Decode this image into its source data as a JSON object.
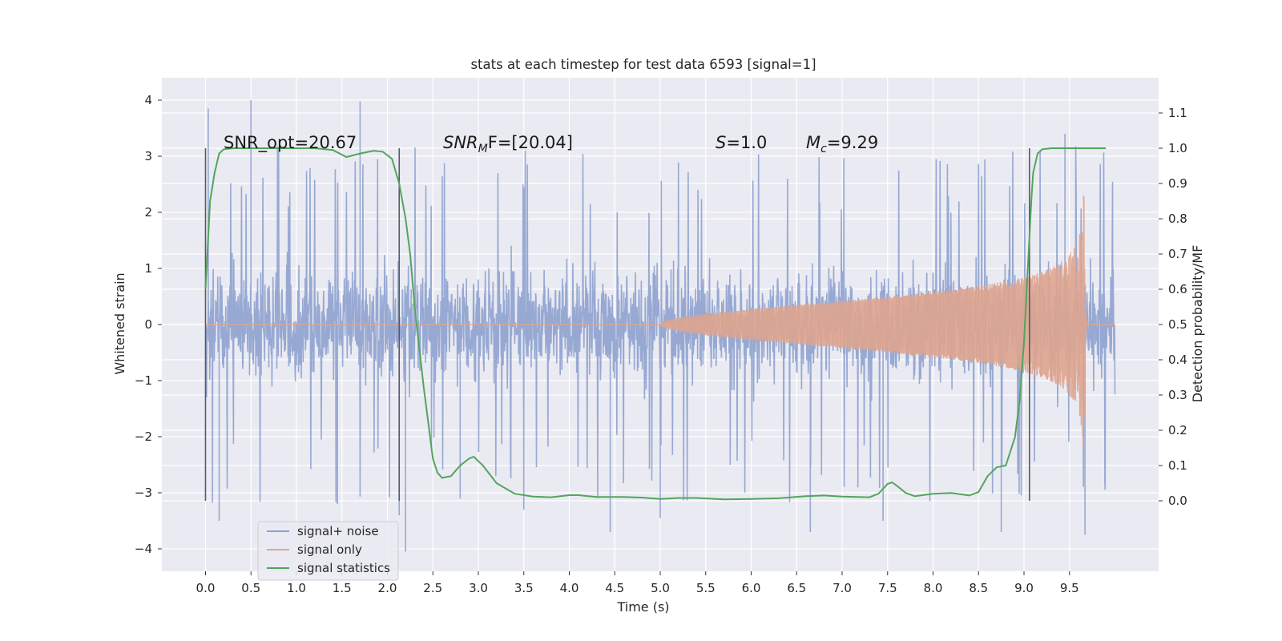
{
  "chart_data": {
    "type": "line",
    "title": "stats at each timestep for test data 6593 [signal=1]",
    "xlabel": "Time (s)",
    "ylabel": "Whitened strain",
    "ylabel_right": "Detection probability/MF",
    "xlim": [
      -0.48,
      10.48
    ],
    "ylim": [
      -4.4,
      4.4
    ],
    "ylim_right": [
      -0.2,
      1.2
    ],
    "xticks": [
      "0.0",
      "0.5",
      "1.0",
      "1.5",
      "2.0",
      "2.5",
      "3.0",
      "3.5",
      "4.0",
      "4.5",
      "5.0",
      "5.5",
      "6.0",
      "6.5",
      "7.0",
      "7.5",
      "8.0",
      "8.5",
      "9.0",
      "9.5"
    ],
    "yticks": [
      "4",
      "3",
      "2",
      "1",
      "0",
      "−1",
      "−2",
      "−3",
      "−4"
    ],
    "yticks_right": [
      "1.1",
      "1.0",
      "0.9",
      "0.8",
      "0.7",
      "0.6",
      "0.5",
      "0.4",
      "0.3",
      "0.2",
      "0.1",
      "0.0"
    ],
    "grid": true,
    "annotations": {
      "snr_opt": "SNR_opt=20.67",
      "snr_mf_main": "SNR",
      "snr_mf_sub": "M",
      "snr_mf_tail": "F=[20.04]",
      "s_main": "S",
      "s_tail": "=1.0",
      "mc_main": "M",
      "mc_sub": "c",
      "mc_tail": "=9.29"
    },
    "vlines_x": [
      0.0,
      2.13,
      9.06
    ],
    "legend": {
      "position": "lower-left",
      "entries": [
        "signal+ noise",
        "signal only",
        "signal statistics"
      ]
    },
    "series": [
      {
        "name": "signal+ noise",
        "color": "#8ea2cf",
        "x_range": [
          0.0,
          10.0
        ],
        "envelope": {
          "typical": 1.2,
          "frequent": 1.95,
          "peak": 4.0
        },
        "spikes": [
          [
            0.03,
            3.85
          ],
          [
            0.5,
            4.0
          ],
          [
            1.7,
            3.98
          ],
          [
            0.15,
            -3.5
          ],
          [
            2.2,
            -4.05
          ],
          [
            2.13,
            -3.4
          ],
          [
            3.5,
            -3.3
          ],
          [
            4.45,
            -3.7
          ],
          [
            5.0,
            -3.45
          ],
          [
            6.65,
            -3.7
          ],
          [
            7.45,
            -3.5
          ],
          [
            8.75,
            -3.7
          ],
          [
            9.67,
            -3.75
          ],
          [
            9.45,
            3.4
          ],
          [
            1.45,
            -3.2
          ],
          [
            2.8,
            -3.1
          ]
        ]
      },
      {
        "name": "signal only",
        "color": "#dea48e",
        "x_range": [
          0.0,
          10.0
        ],
        "chirp_start": 5.0,
        "merger_time": 9.66,
        "peak_amplitude": 2.5
      },
      {
        "name": "signal statistics",
        "color": "#52a55d",
        "axis": "right",
        "x": [
          0.0,
          0.05,
          0.1,
          0.15,
          0.2,
          0.3,
          0.5,
          0.8,
          1.0,
          1.2,
          1.4,
          1.55,
          1.7,
          1.85,
          1.95,
          2.05,
          2.13,
          2.2,
          2.25,
          2.3,
          2.4,
          2.45,
          2.5,
          2.55,
          2.6,
          2.7,
          2.8,
          2.9,
          2.95,
          3.05,
          3.2,
          3.4,
          3.6,
          3.8,
          4.0,
          4.1,
          4.3,
          4.6,
          4.8,
          5.0,
          5.2,
          5.4,
          5.7,
          6.0,
          6.3,
          6.6,
          6.8,
          7.0,
          7.3,
          7.4,
          7.5,
          7.55,
          7.6,
          7.7,
          7.8,
          8.0,
          8.2,
          8.4,
          8.5,
          8.6,
          8.7,
          8.8,
          8.9,
          8.95,
          9.0,
          9.05,
          9.08,
          9.1,
          9.15,
          9.2,
          9.3,
          9.5,
          9.7,
          9.9
        ],
        "y": [
          0.6,
          0.85,
          0.93,
          0.985,
          0.997,
          1.0,
          1.0,
          1.0,
          1.0,
          1.0,
          0.995,
          0.975,
          0.985,
          0.993,
          0.99,
          0.97,
          0.9,
          0.8,
          0.7,
          0.55,
          0.32,
          0.22,
          0.12,
          0.08,
          0.065,
          0.07,
          0.1,
          0.12,
          0.125,
          0.1,
          0.05,
          0.02,
          0.012,
          0.01,
          0.016,
          0.016,
          0.011,
          0.011,
          0.009,
          0.005,
          0.008,
          0.008,
          0.004,
          0.005,
          0.007,
          0.013,
          0.015,
          0.012,
          0.01,
          0.02,
          0.048,
          0.052,
          0.043,
          0.022,
          0.013,
          0.02,
          0.022,
          0.015,
          0.025,
          0.07,
          0.095,
          0.1,
          0.18,
          0.28,
          0.45,
          0.7,
          0.85,
          0.93,
          0.985,
          0.997,
          1.0,
          1.0,
          1.0,
          1.0
        ]
      }
    ]
  }
}
